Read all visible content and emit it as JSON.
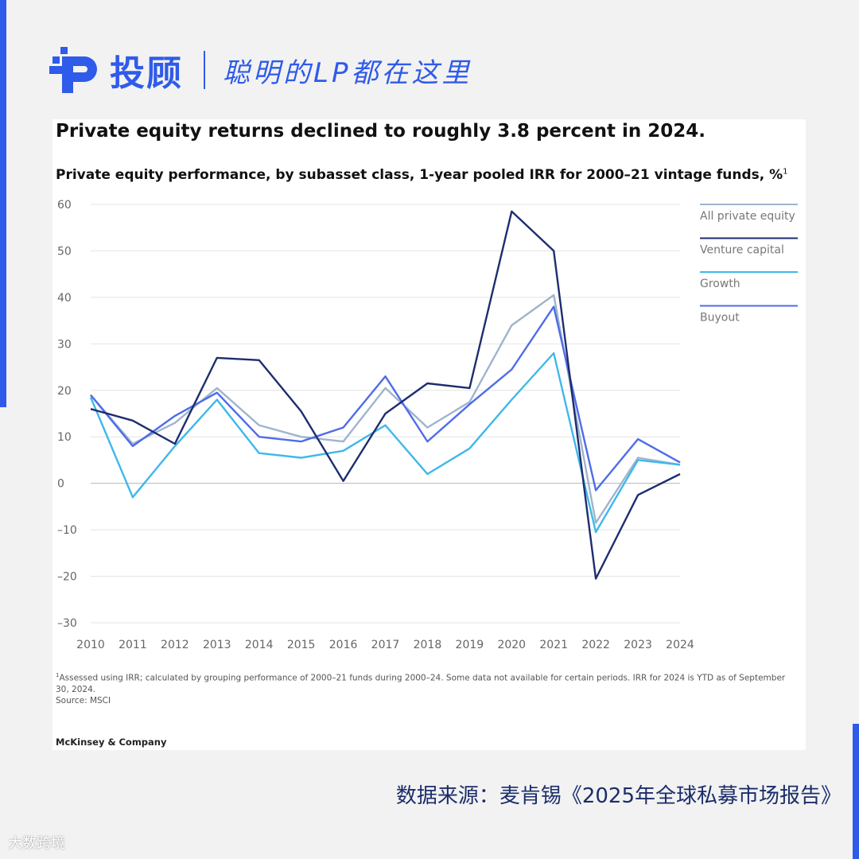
{
  "header": {
    "brand_name": "投顾",
    "slogan": "聪明的LP都在这里"
  },
  "colors": {
    "accent": "#2f5bea",
    "all_private_equity": "#9fb4cd",
    "venture_capital": "#1e2d6e",
    "growth": "#3fb8ea",
    "buyout": "#4f6ce8"
  },
  "chart_data": {
    "type": "line",
    "title": "Private equity returns declined to roughly 3.8 percent in 2024.",
    "subtitle": "Private equity performance, by subasset class, 1-year pooled IRR for 2000–21 vintage funds, %",
    "subtitle_note": "1",
    "x": [
      2010,
      2011,
      2012,
      2013,
      2014,
      2015,
      2016,
      2017,
      2018,
      2019,
      2020,
      2021,
      2022,
      2023,
      2024
    ],
    "x_tick_labels": [
      "2010",
      "2011",
      "2012",
      "2013",
      "2014",
      "2015",
      "2016",
      "2017",
      "2018",
      "2019",
      "2020",
      "2021",
      "2022",
      "2023",
      "2024"
    ],
    "y_ticks": [
      60,
      50,
      40,
      30,
      20,
      10,
      0,
      -10,
      -20,
      -30
    ],
    "y_tick_labels": [
      "60",
      "50",
      "40",
      "30",
      "20",
      "10",
      "0",
      "–10",
      "–20",
      "–30"
    ],
    "ylim": [
      -30,
      60
    ],
    "grid": "horizontal",
    "legend_position": "top-right",
    "series": [
      {
        "name": "All private equity",
        "key": "all_private_equity",
        "values": [
          19,
          8.5,
          13,
          20.5,
          12.5,
          10,
          9,
          20.5,
          12,
          17.5,
          34,
          40.5,
          -8.5,
          5.5,
          4
        ]
      },
      {
        "name": "Venture capital",
        "key": "venture_capital",
        "values": [
          16,
          13.5,
          8.5,
          27,
          26.5,
          15.5,
          0.5,
          15,
          21.5,
          20.5,
          58.5,
          50,
          -20.5,
          -2.5,
          2
        ]
      },
      {
        "name": "Growth",
        "key": "growth",
        "values": [
          18.5,
          -3,
          8,
          18,
          6.5,
          5.5,
          7,
          12.5,
          2,
          7.5,
          18,
          28,
          -10.5,
          5,
          4
        ]
      },
      {
        "name": "Buyout",
        "key": "buyout",
        "values": [
          19,
          8,
          14.5,
          19.5,
          10,
          9,
          12,
          23,
          9,
          17,
          24.5,
          38,
          -1.5,
          9.5,
          4.5
        ]
      }
    ]
  },
  "footnote": {
    "marker": "1",
    "text": "Assessed using IRR; calculated by grouping performance of 2000–21 funds during 2000–24. Some data not available for certain periods. IRR for 2024 is YTD as of September 30, 2024.",
    "source": "Source: MSCI"
  },
  "chart_brand": "McKinsey & Company",
  "source_caption": "数据来源：麦肯锡《2025年全球私募市场报告》",
  "watermark": "大数跨境"
}
